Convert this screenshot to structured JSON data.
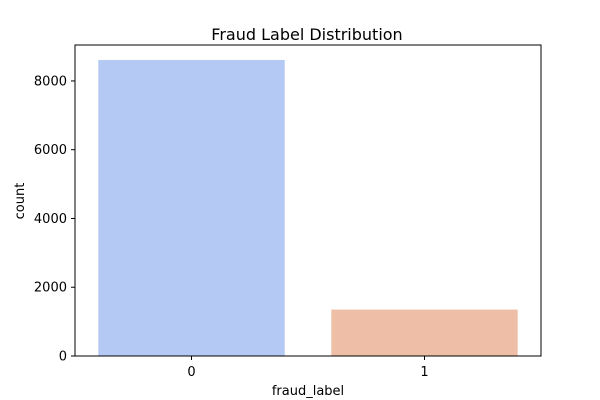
{
  "chart_data": {
    "type": "bar",
    "title": "Fraud Label Distribution",
    "xlabel": "fraud_label",
    "ylabel": "count",
    "categories": [
      "0",
      "1"
    ],
    "values": [
      8610,
      1350
    ],
    "ylim": [
      0,
      9045
    ],
    "yticks": [
      0,
      2000,
      4000,
      6000,
      8000
    ],
    "ytick_labels": [
      "0",
      "2000",
      "4000",
      "6000",
      "8000"
    ],
    "colors": [
      "#b4c9f4",
      "#efbea6"
    ],
    "grid": false,
    "legend": "none"
  }
}
